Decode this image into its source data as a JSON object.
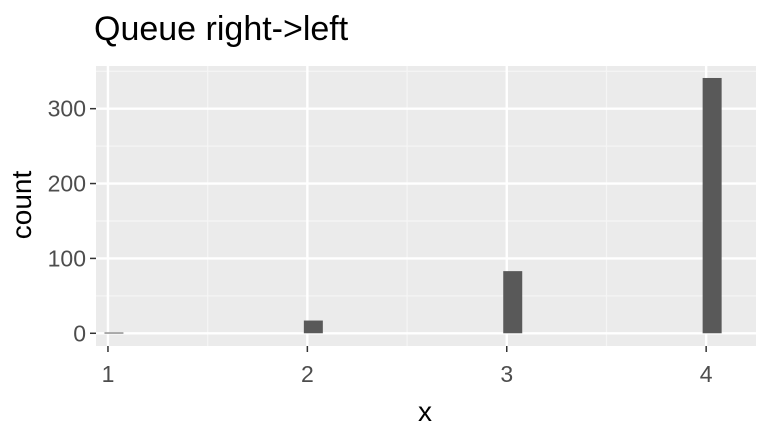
{
  "chart_data": {
    "type": "bar",
    "title": "Queue right->left",
    "xlabel": "x",
    "ylabel": "count",
    "x": [
      1,
      2,
      3,
      4
    ],
    "values": [
      1,
      17,
      83,
      341
    ],
    "xticks": [
      "1",
      "2",
      "3",
      "4"
    ],
    "yticks": [
      "0",
      "100",
      "200",
      "300"
    ],
    "xlim": [
      0.94,
      4.25
    ],
    "ylim": [
      -17,
      357
    ],
    "grid": true,
    "legend": "none",
    "colors": {
      "bar": "#595959",
      "panel": "#ebebeb",
      "grid_major": "#ffffff",
      "grid_minor": "#f5f5f5"
    }
  }
}
